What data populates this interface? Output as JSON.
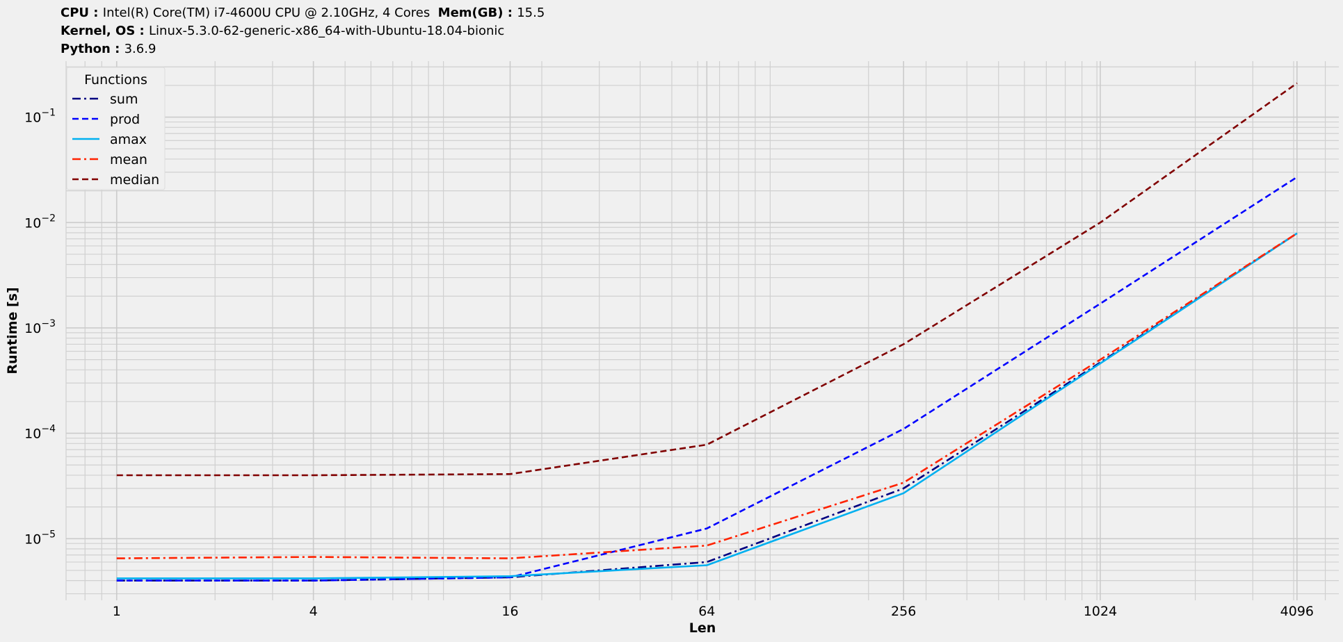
{
  "header": {
    "cpu_label": "CPU",
    "cpu_value": "Intel(R) Core(TM) i7-4600U CPU @ 2.10GHz, 4 Cores",
    "mem_label": "Mem(GB)",
    "mem_value": "15.5",
    "kernel_label": "Kernel, OS",
    "kernel_value": "Linux-5.3.0-62-generic-x86_64-with-Ubuntu-18.04-bionic",
    "python_label": "Python",
    "python_value": "3.6.9"
  },
  "chart_data": {
    "type": "line",
    "xlabel": "Len",
    "ylabel": "Runtime [s]",
    "x_scale": "log2",
    "y_scale": "log10",
    "xlim": [
      0.7,
      5500
    ],
    "ylim": [
      2.6e-06,
      0.34
    ],
    "x": [
      1,
      4,
      16,
      64,
      256,
      1024,
      4096
    ],
    "x_tick_labels": [
      "1",
      "4",
      "16",
      "64",
      "256",
      "1024",
      "4096"
    ],
    "y_ticks": [
      {
        "mantissa": "10",
        "exp": "−5",
        "value": 1e-05
      },
      {
        "mantissa": "10",
        "exp": "−4",
        "value": 0.0001
      },
      {
        "mantissa": "10",
        "exp": "−3",
        "value": 0.001
      },
      {
        "mantissa": "10",
        "exp": "−2",
        "value": 0.01
      },
      {
        "mantissa": "10",
        "exp": "−1",
        "value": 0.1
      }
    ],
    "grid": true,
    "legend": {
      "title": "Functions",
      "position": "top-left"
    },
    "series": [
      {
        "name": "sum",
        "color": "#000080",
        "dash": "dashdot",
        "values": [
          4e-06,
          4e-06,
          4.3e-06,
          6e-06,
          3e-05,
          0.00047,
          0.0079
        ]
      },
      {
        "name": "prod",
        "color": "#0000ff",
        "dash": "dashed",
        "values": [
          4e-06,
          4e-06,
          4.3e-06,
          1.25e-05,
          0.00011,
          0.0017,
          0.027
        ]
      },
      {
        "name": "amax",
        "color": "#00b0f0",
        "dash": "solid",
        "values": [
          4.2e-06,
          4.2e-06,
          4.4e-06,
          5.6e-06,
          2.7e-05,
          0.00046,
          0.0079
        ]
      },
      {
        "name": "mean",
        "color": "#ff2200",
        "dash": "dashdot",
        "values": [
          6.5e-06,
          6.7e-06,
          6.5e-06,
          8.6e-06,
          3.4e-05,
          0.0005,
          0.0079
        ]
      },
      {
        "name": "median",
        "color": "#800000",
        "dash": "dashed",
        "values": [
          4e-05,
          4e-05,
          4.1e-05,
          7.8e-05,
          0.0007,
          0.01,
          0.21
        ]
      }
    ]
  }
}
